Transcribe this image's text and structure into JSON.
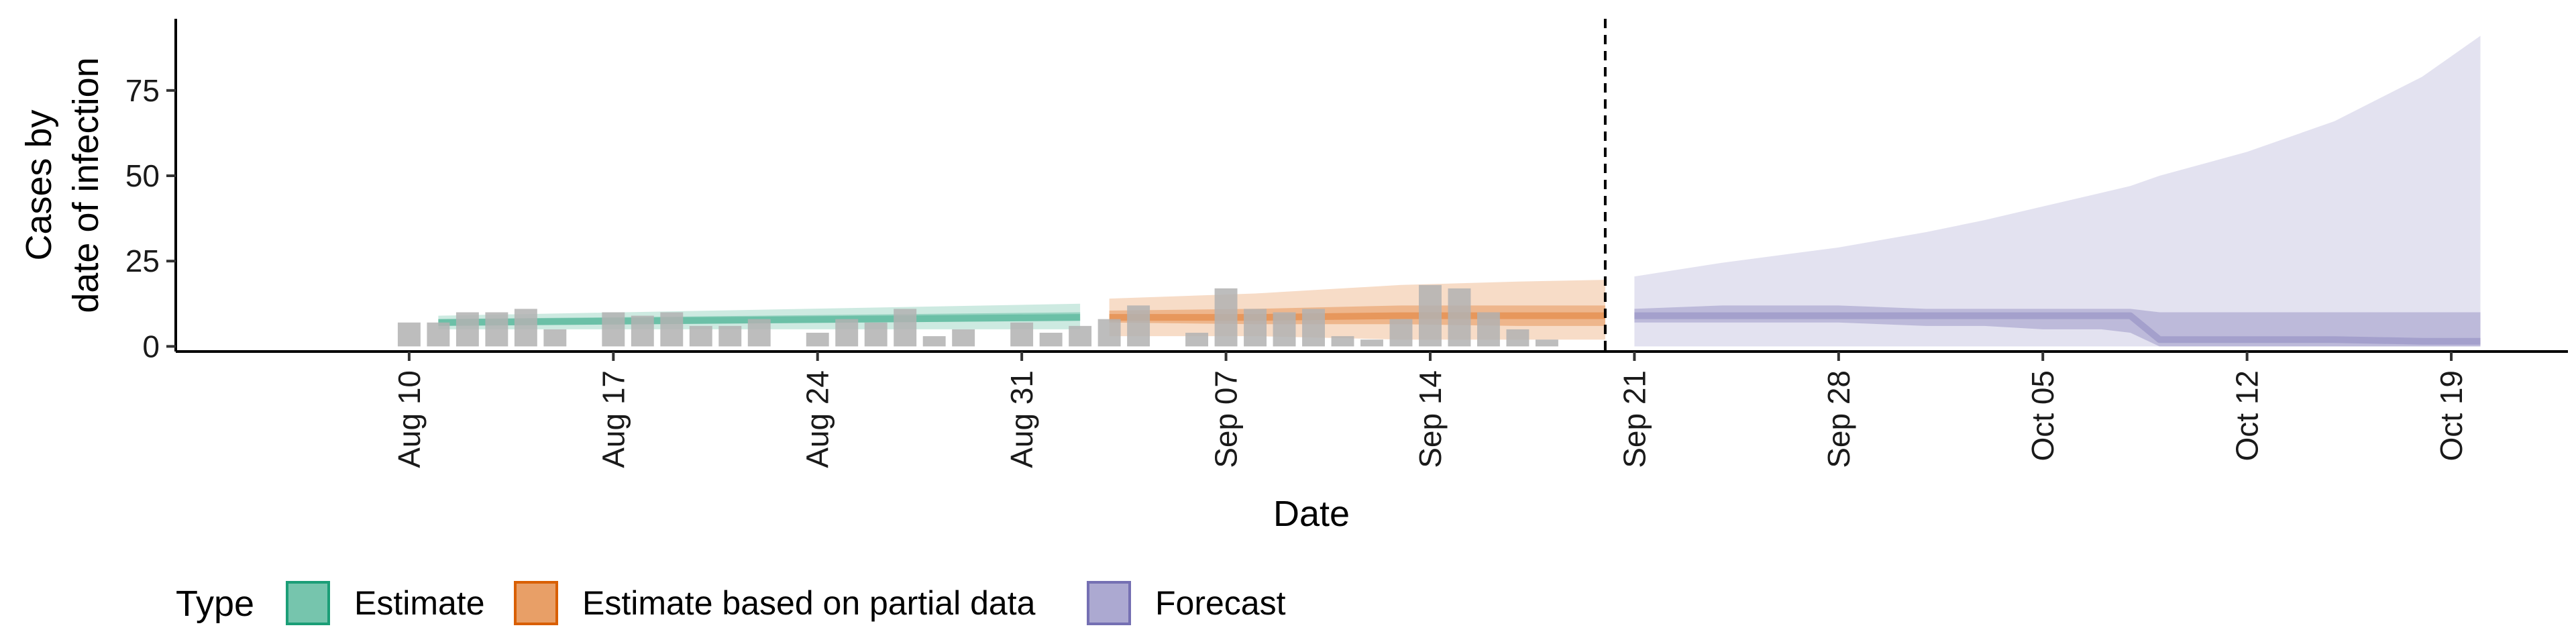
{
  "chart_data": {
    "type": "area",
    "xlabel": "Date",
    "ylabel_lines": [
      "Cases by",
      "date of infection"
    ],
    "ylim": [
      -1.5,
      96
    ],
    "yticks": [
      0,
      25,
      50,
      75
    ],
    "xlim": [
      "2020-08-02",
      "2020-10-23"
    ],
    "xticks": [
      {
        "date": "2020-08-10",
        "label": "Aug 10"
      },
      {
        "date": "2020-08-17",
        "label": "Aug 17"
      },
      {
        "date": "2020-08-24",
        "label": "Aug 24"
      },
      {
        "date": "2020-08-31",
        "label": "Aug 31"
      },
      {
        "date": "2020-09-07",
        "label": "Sep 07"
      },
      {
        "date": "2020-09-14",
        "label": "Sep 14"
      },
      {
        "date": "2020-09-21",
        "label": "Sep 21"
      },
      {
        "date": "2020-09-28",
        "label": "Sep 28"
      },
      {
        "date": "2020-10-05",
        "label": "Oct 05"
      },
      {
        "date": "2020-10-12",
        "label": "Oct 12"
      },
      {
        "date": "2020-10-19",
        "label": "Oct 19"
      }
    ],
    "vline_date": "2020-09-20",
    "legend": {
      "title": "Type",
      "position": "bottom",
      "items": [
        {
          "label": "Estimate",
          "color": "#1b9e77"
        },
        {
          "label": "Estimate based on partial data",
          "color": "#d95f02"
        },
        {
          "label": "Forecast",
          "color": "#7570b3"
        }
      ]
    },
    "observed_bars": {
      "color": "#b2b2b2",
      "dates": [
        "2020-08-10",
        "2020-08-11",
        "2020-08-12",
        "2020-08-13",
        "2020-08-14",
        "2020-08-15",
        "2020-08-16",
        "2020-08-17",
        "2020-08-18",
        "2020-08-19",
        "2020-08-20",
        "2020-08-21",
        "2020-08-22",
        "2020-08-23",
        "2020-08-24",
        "2020-08-25",
        "2020-08-26",
        "2020-08-27",
        "2020-08-28",
        "2020-08-29",
        "2020-08-30",
        "2020-08-31",
        "2020-09-01",
        "2020-09-02",
        "2020-09-03",
        "2020-09-04",
        "2020-09-05",
        "2020-09-06",
        "2020-09-07",
        "2020-09-08",
        "2020-09-09",
        "2020-09-10",
        "2020-09-11",
        "2020-09-12",
        "2020-09-13",
        "2020-09-14",
        "2020-09-15",
        "2020-09-16",
        "2020-09-17",
        "2020-09-18",
        "2020-09-19",
        "2020-09-20"
      ],
      "values": [
        7,
        7,
        10,
        10,
        11,
        5,
        0,
        10,
        9,
        10,
        6,
        6,
        8,
        0,
        4,
        8,
        7,
        11,
        3,
        5,
        0,
        7,
        4,
        6,
        8,
        12,
        0,
        4,
        17,
        11,
        10,
        11,
        3,
        2,
        8,
        18,
        17,
        10,
        5,
        2,
        0,
        0
      ]
    },
    "series": [
      {
        "name": "Estimate",
        "color": "#1b9e77",
        "dates": [
          "2020-08-11",
          "2020-09-02"
        ],
        "median": [
          7,
          8.5
        ],
        "inner": [
          [
            6,
            8
          ],
          [
            7.5,
            10
          ]
        ],
        "outer": [
          [
            5,
            9
          ],
          [
            5,
            12.5
          ]
        ]
      },
      {
        "name": "Estimate based on partial data",
        "color": "#d95f02",
        "dates": [
          "2020-09-03",
          "2020-09-08",
          "2020-09-13",
          "2020-09-17",
          "2020-09-20"
        ],
        "median": [
          8.5,
          8.5,
          9,
          9,
          9
        ],
        "inner": [
          [
            7,
            10.5
          ],
          [
            6.5,
            11
          ],
          [
            6.5,
            12
          ],
          [
            6,
            12
          ],
          [
            6,
            12
          ]
        ],
        "outer": [
          [
            3,
            14
          ],
          [
            3,
            15.5
          ],
          [
            2,
            18
          ],
          [
            2,
            19
          ],
          [
            2,
            19.5
          ]
        ]
      },
      {
        "name": "Forecast",
        "color": "#7570b3",
        "dates": [
          "2020-09-21",
          "2020-09-24",
          "2020-09-28",
          "2020-10-01",
          "2020-10-03",
          "2020-10-05",
          "2020-10-07",
          "2020-10-08",
          "2020-10-09",
          "2020-10-12",
          "2020-10-15",
          "2020-10-18",
          "2020-10-20"
        ],
        "median": [
          9,
          9,
          9,
          9,
          9,
          9,
          9,
          9,
          2,
          2,
          2,
          1.5,
          1.5
        ],
        "inner": [
          [
            7,
            11
          ],
          [
            7,
            12
          ],
          [
            7,
            12
          ],
          [
            6,
            11
          ],
          [
            6,
            11
          ],
          [
            5,
            11
          ],
          [
            5,
            11
          ],
          [
            4,
            11
          ],
          [
            0,
            10
          ],
          [
            0,
            10
          ],
          [
            0,
            10
          ],
          [
            0,
            10
          ],
          [
            0,
            10
          ]
        ],
        "outer": [
          [
            0,
            20.5
          ],
          [
            0,
            24.5
          ],
          [
            0,
            29
          ],
          [
            0,
            33.5
          ],
          [
            0,
            37
          ],
          [
            0,
            41
          ],
          [
            0,
            45
          ],
          [
            0,
            47
          ],
          [
            0,
            50
          ],
          [
            0,
            57
          ],
          [
            0,
            66
          ],
          [
            0,
            79
          ],
          [
            0,
            91
          ]
        ]
      }
    ]
  }
}
